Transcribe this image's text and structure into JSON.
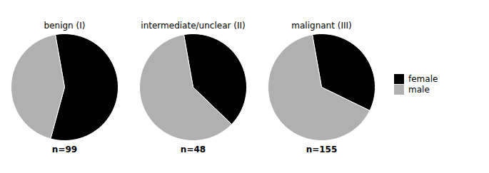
{
  "chart_data": [
    {
      "type": "pie",
      "title": "benign (I)",
      "annotations": [
        "n=99"
      ],
      "categories": [
        "female",
        "male"
      ],
      "values": [
        57,
        43
      ],
      "colors": [
        "#000000",
        "#b0b0b0"
      ]
    },
    {
      "type": "pie",
      "title": "intermediate/unclear (II)",
      "annotations": [
        "n=48"
      ],
      "categories": [
        "female",
        "male"
      ],
      "values": [
        40,
        60
      ],
      "colors": [
        "#000000",
        "#b0b0b0"
      ]
    },
    {
      "type": "pie",
      "title": "malignant (III)",
      "annotations": [
        "n=155"
      ],
      "categories": [
        "female",
        "male"
      ],
      "values": [
        35,
        65
      ],
      "colors": [
        "#000000",
        "#b0b0b0"
      ],
      "legend": "right"
    }
  ]
}
